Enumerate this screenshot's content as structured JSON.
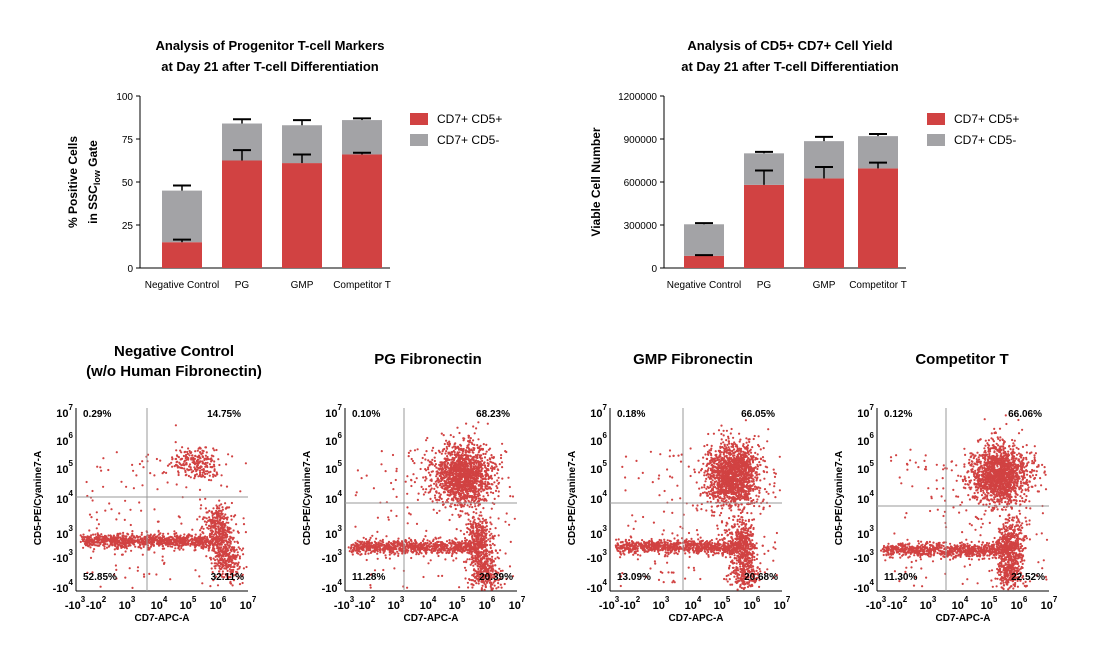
{
  "colors": {
    "red": "#d14242",
    "gray": "#a3a3a6",
    "axis": "#000000",
    "gate": "#999999"
  },
  "chart_data": [
    {
      "type": "bar",
      "stacked": true,
      "title_lines": [
        "Analysis of Progenitor T-cell Markers",
        "at Day 21 after T-cell Differentiation"
      ],
      "ylabel_line1": "% Positive Cells",
      "ylabel_line2_prefix": "in SSC",
      "ylabel_line2_sub": "low",
      "ylabel_line2_suffix": " Gate",
      "yticks": [
        "0",
        "25",
        "50",
        "75",
        "100"
      ],
      "ylim": [
        0,
        100
      ],
      "categories": [
        "Negative Control",
        "PG",
        "GMP",
        "Competitor T"
      ],
      "series": [
        {
          "name": "CD7+ CD5+",
          "values": [
            15,
            62.5,
            61,
            66
          ],
          "errors": [
            1.5,
            6,
            5,
            1
          ]
        },
        {
          "name": "CD7+ CD5-",
          "values": [
            30,
            21.5,
            22,
            20
          ],
          "errors": [
            3,
            2.5,
            3,
            1
          ]
        }
      ],
      "legend": "right"
    },
    {
      "type": "bar",
      "stacked": true,
      "title_lines": [
        "Analysis of CD5+ CD7+ Cell Yield",
        "at Day 21 after T-cell Differentiation"
      ],
      "ylabel": "Viable Cell Number",
      "yticks": [
        "0",
        "300000",
        "600000",
        "900000",
        "1200000"
      ],
      "ylim": [
        0,
        1200000
      ],
      "categories": [
        "Negative Control",
        "PG",
        "GMP",
        "Competitor T"
      ],
      "series": [
        {
          "name": "CD7+ CD5+",
          "values": [
            85000,
            580000,
            625000,
            695000
          ],
          "errors": [
            5000,
            100000,
            80000,
            40000
          ]
        },
        {
          "name": "CD7+ CD5-",
          "values": [
            220000,
            220000,
            260000,
            225000
          ],
          "errors": [
            8000,
            10000,
            30000,
            15000
          ]
        }
      ],
      "legend": "right"
    },
    {
      "type": "scatter",
      "title_lines": [
        "Negative Control",
        "(w/o Human Fibronectin)"
      ],
      "xlabel": "CD7-APC-A",
      "ylabel": "CD5-PE/Cyanine7-A",
      "quadrants": {
        "top_left": "0.29%",
        "top_right": "14.75%",
        "bottom_left": "52.85%",
        "bottom_right": "32.11%"
      }
    },
    {
      "type": "scatter",
      "title_lines": [
        "PG Fibronectin"
      ],
      "xlabel": "CD7-APC-A",
      "ylabel": "CD5-PE/Cyanine7-A",
      "quadrants": {
        "top_left": "0.10%",
        "top_right": "68.23%",
        "bottom_left": "11.28%",
        "bottom_right": "20.39%"
      }
    },
    {
      "type": "scatter",
      "title_lines": [
        "GMP Fibronectin"
      ],
      "xlabel": "CD7-APC-A",
      "ylabel": "CD5-PE/Cyanine7-A",
      "quadrants": {
        "top_left": "0.18%",
        "top_right": "66.05%",
        "bottom_left": "13.09%",
        "bottom_right": "20.68%"
      }
    },
    {
      "type": "scatter",
      "title_lines": [
        "Competitor T"
      ],
      "xlabel": "CD7-APC-A",
      "ylabel": "CD5-PE/Cyanine7-A",
      "quadrants": {
        "top_left": "0.12%",
        "top_right": "66.06%",
        "bottom_left": "11.30%",
        "bottom_right": "22.52%"
      }
    }
  ],
  "flow_axis": {
    "y_ticks": [
      {
        "base": "10",
        "exp": "7"
      },
      {
        "base": "10",
        "exp": "6"
      },
      {
        "base": "10",
        "exp": "5"
      },
      {
        "base": "10",
        "exp": "4"
      },
      {
        "base": "10",
        "exp": "3"
      },
      {
        "base": "-10",
        "exp": "3"
      },
      {
        "base": "-10",
        "exp": "4"
      }
    ],
    "x_ticks": [
      {
        "base": "-10",
        "exp": "3"
      },
      {
        "base": "-10",
        "exp": "2"
      },
      {
        "base": "10",
        "exp": "3"
      },
      {
        "base": "10",
        "exp": "4"
      },
      {
        "base": "10",
        "exp": "5"
      },
      {
        "base": "10",
        "exp": "6"
      },
      {
        "base": "10",
        "exp": "7"
      }
    ]
  }
}
